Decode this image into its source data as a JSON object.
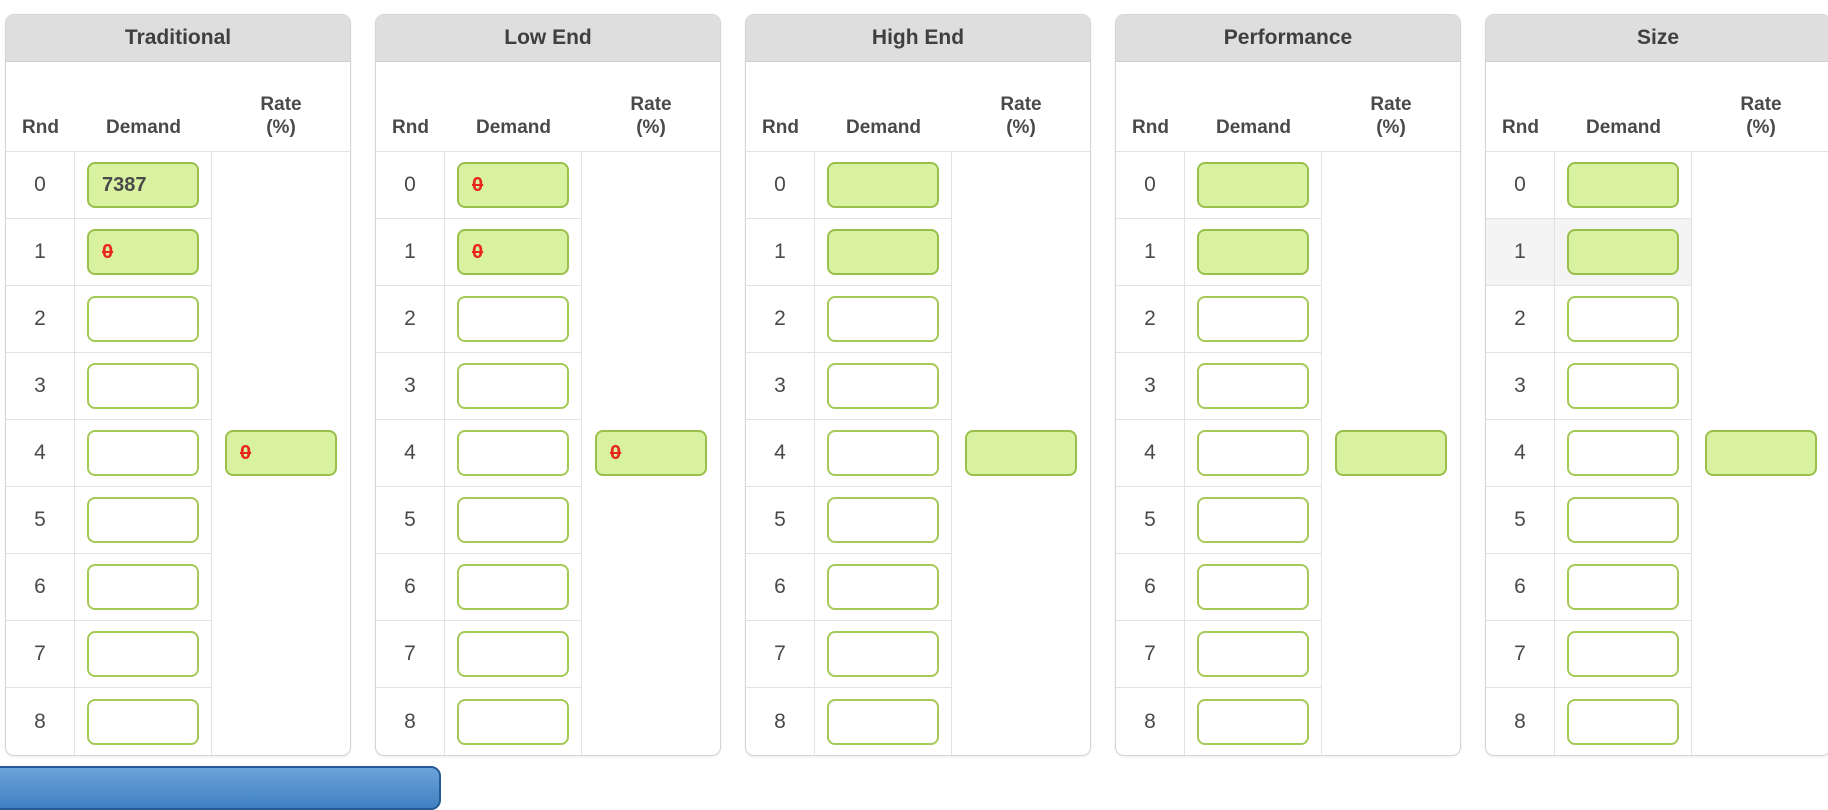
{
  "columns": {
    "rnd": "Rnd",
    "demand": "Demand",
    "rate_line1": "Rate",
    "rate_line2": "(%)"
  },
  "rate_input_row": 4,
  "panels": [
    {
      "title": "Traditional",
      "rows": [
        {
          "rnd": "0",
          "demand": {
            "filled": true,
            "value": "7387",
            "invalid": false
          }
        },
        {
          "rnd": "1",
          "demand": {
            "filled": true,
            "value": "0",
            "invalid": true
          }
        },
        {
          "rnd": "2",
          "demand": {
            "filled": false,
            "value": "",
            "invalid": false
          }
        },
        {
          "rnd": "3",
          "demand": {
            "filled": false,
            "value": "",
            "invalid": false
          }
        },
        {
          "rnd": "4",
          "demand": {
            "filled": false,
            "value": "",
            "invalid": false
          }
        },
        {
          "rnd": "5",
          "demand": {
            "filled": false,
            "value": "",
            "invalid": false
          }
        },
        {
          "rnd": "6",
          "demand": {
            "filled": false,
            "value": "",
            "invalid": false
          }
        },
        {
          "rnd": "7",
          "demand": {
            "filled": false,
            "value": "",
            "invalid": false
          }
        },
        {
          "rnd": "8",
          "demand": {
            "filled": false,
            "value": "",
            "invalid": false
          }
        }
      ],
      "rate": {
        "filled": true,
        "value": "0",
        "invalid": true
      }
    },
    {
      "title": "Low End",
      "rows": [
        {
          "rnd": "0",
          "demand": {
            "filled": true,
            "value": "0",
            "invalid": true
          }
        },
        {
          "rnd": "1",
          "demand": {
            "filled": true,
            "value": "0",
            "invalid": true
          }
        },
        {
          "rnd": "2",
          "demand": {
            "filled": false,
            "value": "",
            "invalid": false
          }
        },
        {
          "rnd": "3",
          "demand": {
            "filled": false,
            "value": "",
            "invalid": false
          }
        },
        {
          "rnd": "4",
          "demand": {
            "filled": false,
            "value": "",
            "invalid": false
          }
        },
        {
          "rnd": "5",
          "demand": {
            "filled": false,
            "value": "",
            "invalid": false
          }
        },
        {
          "rnd": "6",
          "demand": {
            "filled": false,
            "value": "",
            "invalid": false
          }
        },
        {
          "rnd": "7",
          "demand": {
            "filled": false,
            "value": "",
            "invalid": false
          }
        },
        {
          "rnd": "8",
          "demand": {
            "filled": false,
            "value": "",
            "invalid": false
          }
        }
      ],
      "rate": {
        "filled": true,
        "value": "0",
        "invalid": true
      }
    },
    {
      "title": "High End",
      "rows": [
        {
          "rnd": "0",
          "demand": {
            "filled": true,
            "value": "",
            "invalid": false
          }
        },
        {
          "rnd": "1",
          "demand": {
            "filled": true,
            "value": "",
            "invalid": false
          }
        },
        {
          "rnd": "2",
          "demand": {
            "filled": false,
            "value": "",
            "invalid": false
          }
        },
        {
          "rnd": "3",
          "demand": {
            "filled": false,
            "value": "",
            "invalid": false
          }
        },
        {
          "rnd": "4",
          "demand": {
            "filled": false,
            "value": "",
            "invalid": false
          }
        },
        {
          "rnd": "5",
          "demand": {
            "filled": false,
            "value": "",
            "invalid": false
          }
        },
        {
          "rnd": "6",
          "demand": {
            "filled": false,
            "value": "",
            "invalid": false
          }
        },
        {
          "rnd": "7",
          "demand": {
            "filled": false,
            "value": "",
            "invalid": false
          }
        },
        {
          "rnd": "8",
          "demand": {
            "filled": false,
            "value": "",
            "invalid": false
          }
        }
      ],
      "rate": {
        "filled": true,
        "value": "",
        "invalid": false
      }
    },
    {
      "title": "Performance",
      "rows": [
        {
          "rnd": "0",
          "demand": {
            "filled": true,
            "value": "",
            "invalid": false
          }
        },
        {
          "rnd": "1",
          "demand": {
            "filled": true,
            "value": "",
            "invalid": false
          }
        },
        {
          "rnd": "2",
          "demand": {
            "filled": false,
            "value": "",
            "invalid": false
          }
        },
        {
          "rnd": "3",
          "demand": {
            "filled": false,
            "value": "",
            "invalid": false
          }
        },
        {
          "rnd": "4",
          "demand": {
            "filled": false,
            "value": "",
            "invalid": false
          }
        },
        {
          "rnd": "5",
          "demand": {
            "filled": false,
            "value": "",
            "invalid": false
          }
        },
        {
          "rnd": "6",
          "demand": {
            "filled": false,
            "value": "",
            "invalid": false
          }
        },
        {
          "rnd": "7",
          "demand": {
            "filled": false,
            "value": "",
            "invalid": false
          }
        },
        {
          "rnd": "8",
          "demand": {
            "filled": false,
            "value": "",
            "invalid": false
          }
        }
      ],
      "rate": {
        "filled": true,
        "value": "",
        "invalid": false
      }
    },
    {
      "title": "Size",
      "highlight_row": 1,
      "rows": [
        {
          "rnd": "0",
          "demand": {
            "filled": true,
            "value": "",
            "invalid": false
          }
        },
        {
          "rnd": "1",
          "demand": {
            "filled": true,
            "value": "",
            "invalid": false
          }
        },
        {
          "rnd": "2",
          "demand": {
            "filled": false,
            "value": "",
            "invalid": false
          }
        },
        {
          "rnd": "3",
          "demand": {
            "filled": false,
            "value": "",
            "invalid": false
          }
        },
        {
          "rnd": "4",
          "demand": {
            "filled": false,
            "value": "",
            "invalid": false
          }
        },
        {
          "rnd": "5",
          "demand": {
            "filled": false,
            "value": "",
            "invalid": false
          }
        },
        {
          "rnd": "6",
          "demand": {
            "filled": false,
            "value": "",
            "invalid": false
          }
        },
        {
          "rnd": "7",
          "demand": {
            "filled": false,
            "value": "",
            "invalid": false
          }
        },
        {
          "rnd": "8",
          "demand": {
            "filled": false,
            "value": "",
            "invalid": false
          }
        }
      ],
      "rate": {
        "filled": true,
        "value": "",
        "invalid": false
      }
    }
  ],
  "partial_button": {
    "label": ""
  },
  "colors": {
    "title_bg": "#dedede",
    "title_text": "#3f3f3f",
    "cell_border": "#e2e2e2",
    "input_green_bg": "#d8f2a1",
    "input_green_border": "#9ac04b",
    "input_empty_border": "#a5ca57",
    "invalid_red": "#e8251f",
    "value_text": "#4a4a4a",
    "row_highlight": "#f4f4f4",
    "button_border": "#265a96",
    "button_fill": "#4080c2"
  }
}
